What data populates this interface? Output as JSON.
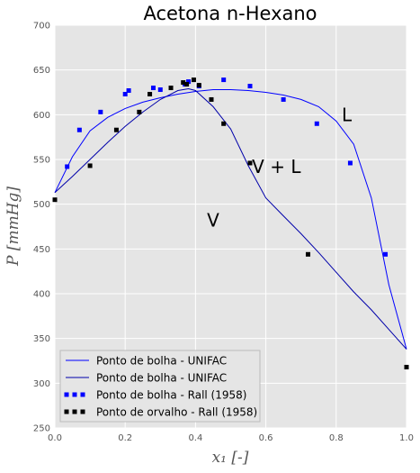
{
  "chart_data": {
    "type": "scatter",
    "title": "Acetona n-Hexano",
    "xlabel": "x₁ [-]",
    "ylabel": "P [mmHg]",
    "xlim": [
      0.0,
      1.0
    ],
    "ylim": [
      250,
      700
    ],
    "xticks": [
      0.0,
      0.2,
      0.4,
      0.6,
      0.8,
      1.0
    ],
    "xtick_labels": [
      "0.0",
      "0.2",
      "0.4",
      "0.6",
      "0.8",
      "1.0"
    ],
    "yticks": [
      250,
      300,
      350,
      400,
      450,
      500,
      550,
      600,
      650,
      700
    ],
    "ytick_labels": [
      "250",
      "300",
      "350",
      "400",
      "450",
      "500",
      "550",
      "600",
      "650",
      "700"
    ],
    "grid": true,
    "background": "#e5e5e5",
    "legend_position": "lower-left",
    "annotations": [
      {
        "text": "L",
        "x": 0.83,
        "y": 600
      },
      {
        "text": "V + L",
        "x": 0.63,
        "y": 542
      },
      {
        "text": "V",
        "x": 0.45,
        "y": 482
      }
    ],
    "series": [
      {
        "name": "Ponto de bolha - UNIFAC",
        "kind": "line",
        "color": "#0000ff",
        "x": [
          0.0,
          0.05,
          0.1,
          0.15,
          0.2,
          0.25,
          0.3,
          0.35,
          0.4,
          0.45,
          0.5,
          0.55,
          0.6,
          0.65,
          0.7,
          0.75,
          0.8,
          0.85,
          0.9,
          0.95,
          1.0
        ],
        "y": [
          513,
          553,
          582,
          597,
          607,
          614,
          619,
          623,
          626,
          628,
          628,
          627,
          625,
          622,
          617,
          609,
          593,
          567,
          507,
          410,
          338
        ]
      },
      {
        "name": "Ponto de bolha - UNIFAC",
        "kind": "line",
        "color": "#0000aa",
        "x": [
          0.0,
          0.05,
          0.1,
          0.15,
          0.2,
          0.25,
          0.3,
          0.35,
          0.38,
          0.4,
          0.45,
          0.5,
          0.55,
          0.6,
          0.65,
          0.7,
          0.75,
          0.8,
          0.85,
          0.9,
          0.95,
          1.0
        ],
        "y": [
          513,
          531,
          550,
          569,
          587,
          603,
          617,
          627,
          629,
          627,
          609,
          584,
          543,
          507,
          487,
          467,
          446,
          424,
          402,
          382,
          360,
          338
        ]
      },
      {
        "name": "Ponto de bolha - Rall (1958)",
        "kind": "scatter",
        "color": "#0000ff",
        "x": [
          0.035,
          0.07,
          0.13,
          0.2,
          0.21,
          0.28,
          0.3,
          0.37,
          0.38,
          0.41,
          0.48,
          0.555,
          0.65,
          0.745,
          0.84,
          0.94
        ],
        "y": [
          542,
          583,
          603,
          623,
          627,
          630,
          628,
          634,
          637,
          632,
          639,
          632,
          617,
          590,
          546,
          444
        ]
      },
      {
        "name": "Ponto de orvalho - Rall (1958)",
        "kind": "scatter",
        "color": "#000000",
        "x": [
          0.0,
          0.1,
          0.175,
          0.24,
          0.27,
          0.33,
          0.365,
          0.375,
          0.395,
          0.41,
          0.445,
          0.48,
          0.555,
          0.72,
          1.0
        ],
        "y": [
          505,
          543,
          583,
          603,
          623,
          630,
          636,
          634,
          639,
          633,
          617,
          590,
          546,
          444,
          318
        ]
      }
    ]
  }
}
